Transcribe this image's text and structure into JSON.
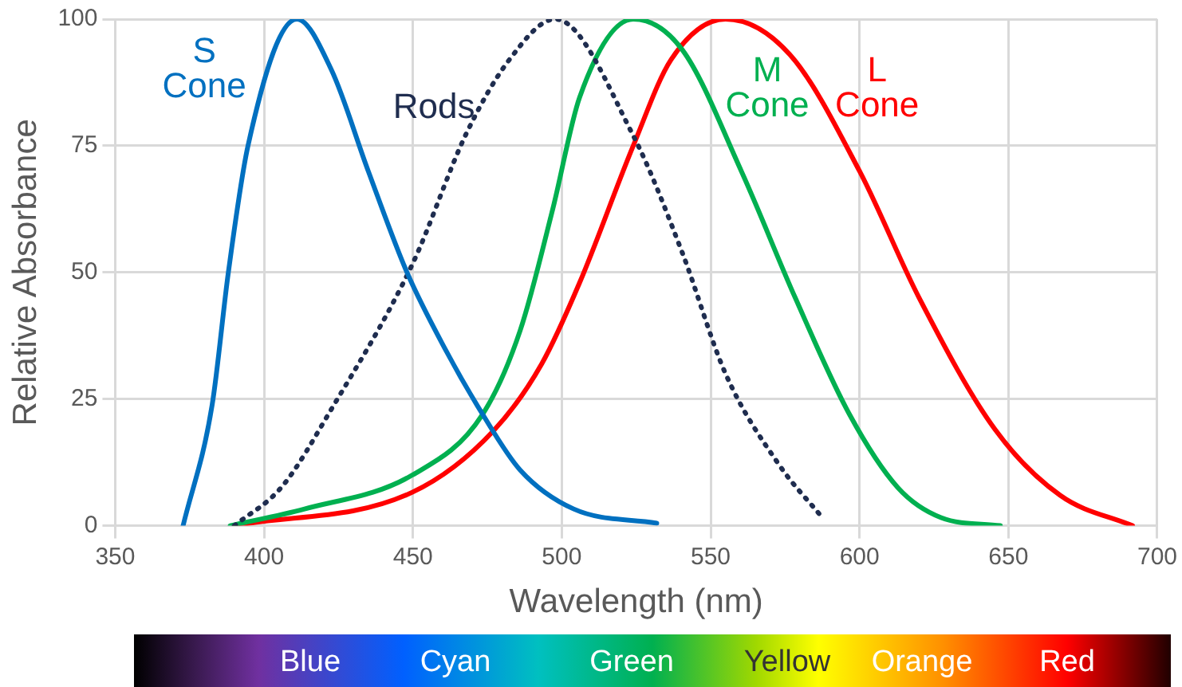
{
  "chart_data": {
    "type": "line",
    "xlabel": "Wavelength (nm)",
    "ylabel": "Relative Absorbance",
    "xlim": [
      350,
      700
    ],
    "xticks": [
      350,
      400,
      450,
      500,
      550,
      600,
      650,
      700
    ],
    "ylim": [
      0,
      100
    ],
    "yticks": [
      0,
      25,
      50,
      75,
      100
    ],
    "grid": true,
    "legend": false,
    "marker": "none",
    "series": [
      {
        "name": "S Cone",
        "color": "#0070c0",
        "line_style": "solid",
        "x": [
          372.8,
          382.6,
          388,
          394.6,
          411,
          422.6,
          435,
          448,
          460.7,
          473.4,
          486,
          504,
          531.9
        ],
        "values": [
          0,
          24,
          50,
          75,
          100,
          90,
          70,
          50,
          35,
          22,
          11,
          3.3,
          0.5
        ]
      },
      {
        "name": "Rods",
        "color": "#1f2d4f",
        "line_style": "dotted",
        "x": [
          390,
          406,
          422.6,
          449.8,
          468,
          482.4,
          497.8,
          524,
          540.4,
          555,
          573,
          587.5
        ],
        "values": [
          0,
          7.7,
          23,
          51.6,
          77.5,
          92,
          100,
          77,
          54,
          30,
          12,
          1.6
        ]
      },
      {
        "name": "M Cone",
        "color": "#00b050",
        "line_style": "solid",
        "x": [
          388.6,
          413.6,
          449.8,
          473.4,
          486,
          497,
          506,
          524,
          540.4,
          560.3,
          578.4,
          596.6,
          612.9,
          627.4,
          647.3
        ],
        "values": [
          0,
          3.3,
          10,
          22,
          38.5,
          62.6,
          84.6,
          100,
          94,
          70,
          45,
          22,
          7.5,
          1.6,
          0
        ]
      },
      {
        "name": "L Cone",
        "color": "#ff0000",
        "line_style": "solid",
        "x": [
          390,
          449.8,
          477,
          493.3,
          506,
          524,
          536.7,
          555,
          576.6,
          600,
          620,
          645.5,
          667.4,
          691.7
        ],
        "values": [
          0,
          6.6,
          18.7,
          32,
          48,
          75,
          92,
          100,
          93,
          70,
          45,
          19,
          6,
          0
        ]
      }
    ],
    "annotations": [
      "Blue",
      "Cyan",
      "Green",
      "Yellow",
      "Orange",
      "Red"
    ]
  }
}
